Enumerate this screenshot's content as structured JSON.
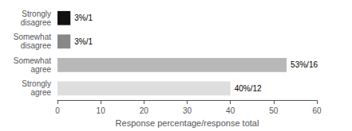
{
  "chart_data": {
    "type": "bar",
    "orientation": "horizontal",
    "categories": [
      "Strongly\ndisagree",
      "Somewhat\ndisagree",
      "Somewhat\nagree",
      "Strongly\nagree"
    ],
    "values": [
      3,
      3,
      53,
      40
    ],
    "value_labels": [
      "3%/1",
      "3%/1",
      "53%/16",
      "40%/12"
    ],
    "data_labels": true,
    "colors": [
      "#111111",
      "#888888",
      "#b8b8b8",
      "#dedede"
    ],
    "xlabel": "Response percentage/response total",
    "xlim": [
      0,
      60
    ],
    "xticks": [
      0,
      10,
      20,
      30,
      40,
      50,
      60
    ],
    "grid": false
  }
}
